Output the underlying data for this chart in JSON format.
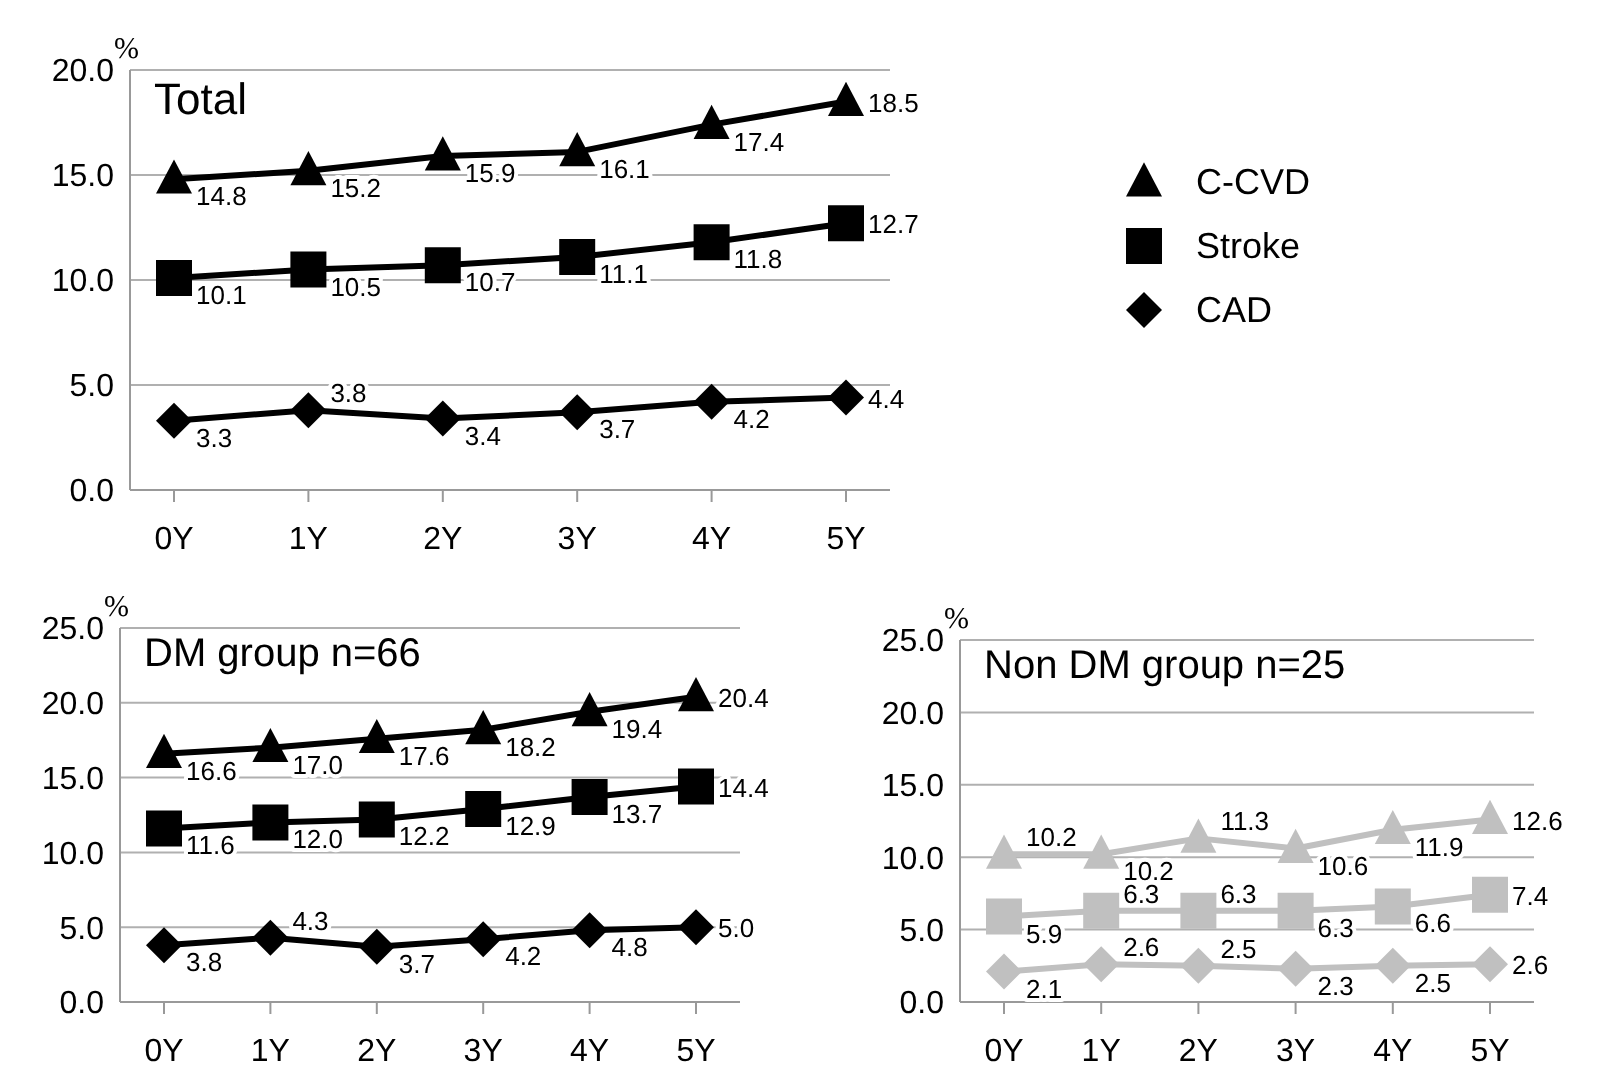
{
  "chart_data": [
    {
      "type": "line",
      "title": "Total",
      "ylabel": "%",
      "categories": [
        "0Y",
        "1Y",
        "2Y",
        "3Y",
        "4Y",
        "5Y"
      ],
      "ylim": [
        0,
        20
      ],
      "yticks": [
        {
          "value": 0,
          "label": "0.0"
        },
        {
          "value": 5,
          "label": "5.0"
        },
        {
          "value": 10,
          "label": "10.0"
        },
        {
          "value": 15,
          "label": "15.0"
        },
        {
          "value": 20,
          "label": "20.0"
        }
      ],
      "grid": "y",
      "legend": "right",
      "data_labels": true,
      "series": [
        {
          "name": "C-CVD",
          "color": "#000000",
          "marker": "triangle",
          "values": [
            14.8,
            15.2,
            15.9,
            16.1,
            17.4,
            18.5
          ]
        },
        {
          "name": "Stroke",
          "color": "#000000",
          "marker": "square",
          "values": [
            10.1,
            10.5,
            10.7,
            11.1,
            11.8,
            12.7
          ]
        },
        {
          "name": "CAD",
          "color": "#000000",
          "marker": "diamond",
          "values": [
            3.3,
            3.8,
            3.4,
            3.7,
            4.2,
            4.4
          ]
        }
      ]
    },
    {
      "type": "line",
      "title": "DM group n=66",
      "ylabel": "%",
      "categories": [
        "0Y",
        "1Y",
        "2Y",
        "3Y",
        "4Y",
        "5Y"
      ],
      "ylim": [
        0,
        25
      ],
      "yticks": [
        {
          "value": 0,
          "label": "0.0"
        },
        {
          "value": 5,
          "label": "5.0"
        },
        {
          "value": 10,
          "label": "10.0"
        },
        {
          "value": 15,
          "label": "15.0"
        },
        {
          "value": 20,
          "label": "20.0"
        },
        {
          "value": 25,
          "label": "25.0"
        }
      ],
      "grid": "y",
      "data_labels": true,
      "series": [
        {
          "color": "#000000",
          "marker": "triangle",
          "values": [
            16.6,
            17.0,
            17.6,
            18.2,
            19.4,
            20.4
          ],
          "value_labels": [
            "16.6",
            "17.0",
            "17.6",
            "18.2",
            "19.4",
            "20.4"
          ]
        },
        {
          "color": "#000000",
          "marker": "square",
          "values": [
            11.6,
            12.0,
            12.2,
            12.9,
            13.7,
            14.4
          ],
          "value_labels": [
            "11.6",
            "12.0",
            "12.2",
            "12.9",
            "13.7",
            "14.4"
          ]
        },
        {
          "color": "#000000",
          "marker": "diamond",
          "values": [
            3.8,
            4.3,
            3.7,
            4.2,
            4.8,
            5.0
          ],
          "value_labels": [
            "3.8",
            "4.3",
            "3.7",
            "4.2",
            "4.8",
            "5.0"
          ]
        }
      ]
    },
    {
      "type": "line",
      "title": "Non DM group n=25",
      "ylabel": "%",
      "categories": [
        "0Y",
        "1Y",
        "2Y",
        "3Y",
        "4Y",
        "5Y"
      ],
      "ylim": [
        0,
        25
      ],
      "yticks": [
        {
          "value": 0,
          "label": "0.0"
        },
        {
          "value": 5,
          "label": "5.0"
        },
        {
          "value": 10,
          "label": "10.0"
        },
        {
          "value": 15,
          "label": "15.0"
        },
        {
          "value": 20,
          "label": "20.0"
        },
        {
          "value": 25,
          "label": "25.0"
        }
      ],
      "grid": "y",
      "data_labels": true,
      "series": [
        {
          "color": "#c0c0c0",
          "marker": "triangle",
          "values": [
            10.2,
            10.2,
            11.3,
            10.6,
            11.9,
            12.6
          ]
        },
        {
          "color": "#c0c0c0",
          "marker": "square",
          "values": [
            5.9,
            6.3,
            6.3,
            6.3,
            6.6,
            7.4
          ]
        },
        {
          "color": "#c0c0c0",
          "marker": "diamond",
          "values": [
            2.1,
            2.6,
            2.5,
            2.3,
            2.5,
            2.6
          ]
        }
      ]
    }
  ]
}
